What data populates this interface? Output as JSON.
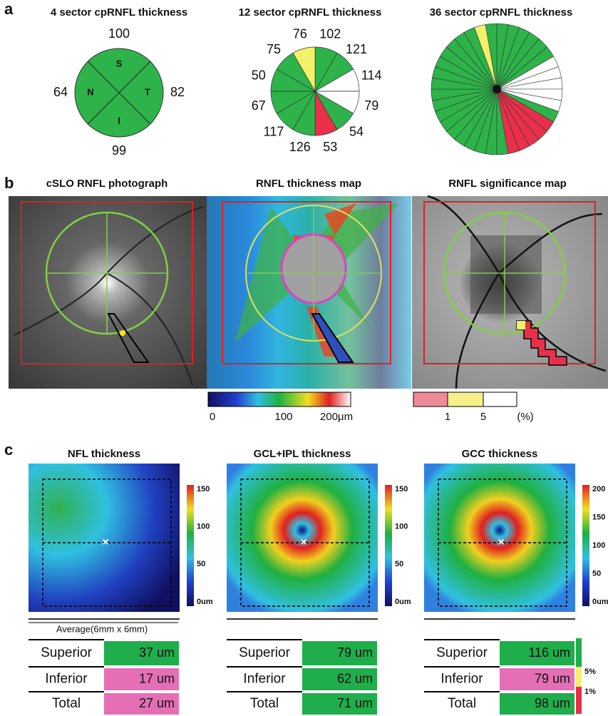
{
  "panel_labels": [
    "a",
    "b",
    "c"
  ],
  "sector_maps": [
    {
      "title": "4 sector cpRNFL thickness",
      "quadrants": [
        "S",
        "T",
        "I",
        "N"
      ],
      "values": [
        100,
        82,
        99,
        64
      ],
      "color": "#2db34a"
    },
    {
      "title": "12 sector cpRNFL thickness",
      "values": [
        102,
        121,
        114,
        79,
        54,
        53,
        126,
        117,
        67,
        50,
        75,
        76
      ],
      "colors": [
        "#2db34a",
        "#2db34a",
        "#ffffff",
        "#ffffff",
        "#2db34a",
        "#e8304a",
        "#2db34a",
        "#2db34a",
        "#2db34a",
        "#2db34a",
        "#2db34a",
        "#f3f06a"
      ]
    },
    {
      "title": "36 sector cpRNFL thickness",
      "colors": [
        "#2db34a",
        "#2db34a",
        "#2db34a",
        "#2db34a",
        "#2db34a",
        "#2db34a",
        "#ffffff",
        "#ffffff",
        "#ffffff",
        "#ffffff",
        "#ffffff",
        "#2db34a",
        "#e8304a",
        "#e8304a",
        "#e8304a",
        "#e8304a",
        "#e8304a",
        "#2db34a",
        "#2db34a",
        "#2db34a",
        "#2db34a",
        "#2db34a",
        "#2db34a",
        "#2db34a",
        "#2db34a",
        "#2db34a",
        "#2db34a",
        "#2db34a",
        "#2db34a",
        "#2db34a",
        "#2db34a",
        "#2db34a",
        "#2db34a",
        "#2db34a",
        "#f3f06a",
        "#2db34a"
      ]
    }
  ],
  "images": [
    {
      "title": "cSLO RNFL photograph"
    },
    {
      "title": "RNFL thickness map"
    },
    {
      "title": "RNFL significance map"
    }
  ],
  "thickness_scale": {
    "ticks": [
      0,
      100,
      "200μm"
    ]
  },
  "significance_scale": {
    "ticks": [
      1,
      5,
      "(%)"
    ]
  },
  "thickness_maps": [
    {
      "title": "NFL thickness",
      "scale": [
        150,
        100,
        50,
        "0um"
      ]
    },
    {
      "title": "GCL+IPL thickness",
      "scale": [
        150,
        100,
        50,
        "0um"
      ]
    },
    {
      "title": "GCC thickness",
      "scale": [
        200,
        150,
        100,
        50,
        "0um"
      ]
    }
  ],
  "average_label": "Average(6mm x 6mm)",
  "tables": [
    {
      "rows": [
        [
          "Superior",
          "37 um"
        ],
        [
          "Inferior",
          "17 um"
        ],
        [
          "Total",
          "27 um"
        ]
      ],
      "colors": [
        "#1fae4b",
        "#e46fb5",
        "#e46fb5"
      ]
    },
    {
      "rows": [
        [
          "Superior",
          "79 um"
        ],
        [
          "Inferior",
          "62 um"
        ],
        [
          "Total",
          "71 um"
        ]
      ],
      "colors": [
        "#1fae4b",
        "#1fae4b",
        "#1fae4b"
      ]
    },
    {
      "rows": [
        [
          "Superior",
          "116 um"
        ],
        [
          "Inferior",
          "79 um"
        ],
        [
          "Total",
          "98 um"
        ]
      ],
      "colors": [
        "#1fae4b",
        "#e46fb5",
        "#1fae4b"
      ]
    }
  ],
  "legend": [
    "5%",
    "1%"
  ]
}
